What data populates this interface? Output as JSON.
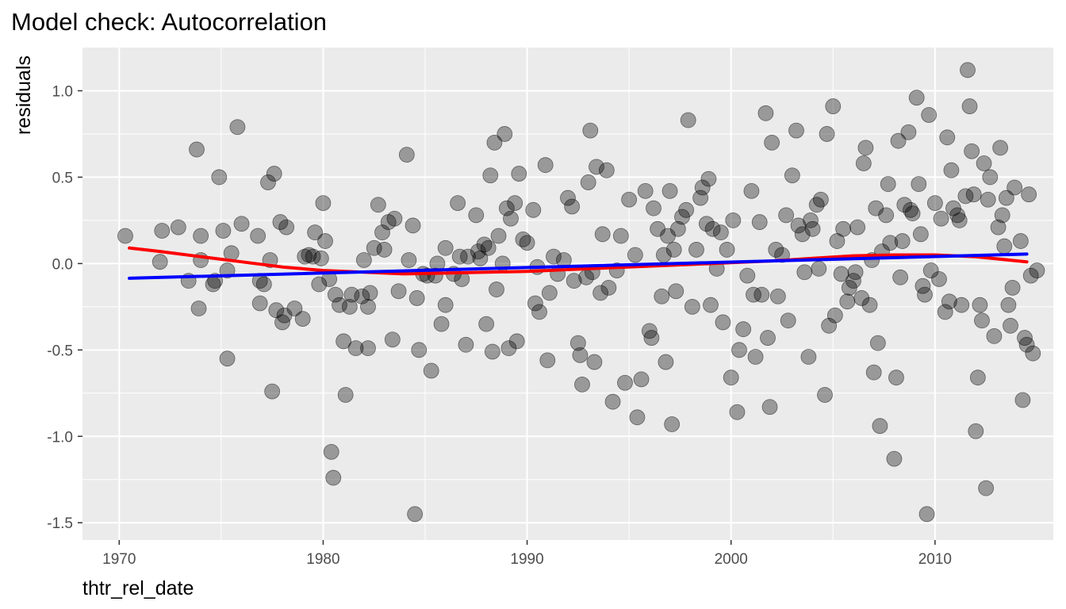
{
  "chart_data": {
    "type": "scatter",
    "title": "Model check: Autocorrelation",
    "xlabel": "thtr_rel_date",
    "ylabel": "residuals",
    "xlim": [
      1968.2,
      2015.8
    ],
    "ylim": [
      -1.6,
      1.25
    ],
    "x_ticks": [
      1970,
      1980,
      1990,
      2000,
      2010
    ],
    "x_tick_labels": [
      "1970",
      "1980",
      "1990",
      "2000",
      "2010"
    ],
    "y_ticks": [
      1.0,
      0.5,
      0.0,
      -0.5,
      -1.0,
      -1.5
    ],
    "y_tick_labels": [
      "1.0",
      "0.5",
      "0.0",
      "-0.5",
      "-1.0",
      "-1.5"
    ],
    "grid": true,
    "background": "#ebebeb",
    "point_color": "#000000",
    "point_opacity": 0.35,
    "points": [
      [
        1970.3,
        0.16
      ],
      [
        1972.0,
        0.01
      ],
      [
        1972.1,
        0.19
      ],
      [
        1972.9,
        0.21
      ],
      [
        1973.4,
        -0.1
      ],
      [
        1973.8,
        0.66
      ],
      [
        1973.9,
        -0.26
      ],
      [
        1974.0,
        0.16
      ],
      [
        1974.0,
        0.02
      ],
      [
        1974.6,
        -0.12
      ],
      [
        1974.7,
        -0.1
      ],
      [
        1974.9,
        0.5
      ],
      [
        1975.1,
        0.19
      ],
      [
        1975.3,
        -0.04
      ],
      [
        1975.3,
        -0.55
      ],
      [
        1975.5,
        0.06
      ],
      [
        1975.8,
        0.79
      ],
      [
        1976.0,
        0.23
      ],
      [
        1976.8,
        0.16
      ],
      [
        1976.9,
        -0.1
      ],
      [
        1976.9,
        -0.23
      ],
      [
        1977.1,
        -0.12
      ],
      [
        1977.3,
        0.47
      ],
      [
        1977.4,
        0.02
      ],
      [
        1977.5,
        -0.74
      ],
      [
        1977.6,
        0.52
      ],
      [
        1977.7,
        -0.27
      ],
      [
        1977.9,
        0.24
      ],
      [
        1978.0,
        -0.34
      ],
      [
        1978.1,
        -0.3
      ],
      [
        1978.2,
        0.21
      ],
      [
        1978.6,
        -0.26
      ],
      [
        1979.0,
        -0.32
      ],
      [
        1979.1,
        0.04
      ],
      [
        1979.3,
        0.05
      ],
      [
        1979.5,
        0.04
      ],
      [
        1979.6,
        0.18
      ],
      [
        1979.8,
        -0.12
      ],
      [
        1979.9,
        0.03
      ],
      [
        1980.0,
        0.35
      ],
      [
        1980.1,
        0.13
      ],
      [
        1980.3,
        -0.09
      ],
      [
        1980.4,
        -1.09
      ],
      [
        1980.5,
        -1.24
      ],
      [
        1980.6,
        -0.18
      ],
      [
        1980.8,
        -0.24
      ],
      [
        1981.0,
        -0.45
      ],
      [
        1981.1,
        -0.76
      ],
      [
        1981.3,
        -0.25
      ],
      [
        1981.4,
        -0.18
      ],
      [
        1981.6,
        -0.49
      ],
      [
        1981.9,
        -0.19
      ],
      [
        1982.0,
        0.02
      ],
      [
        1982.2,
        -0.25
      ],
      [
        1982.2,
        -0.49
      ],
      [
        1982.3,
        -0.17
      ],
      [
        1982.5,
        0.09
      ],
      [
        1982.7,
        0.34
      ],
      [
        1982.9,
        0.18
      ],
      [
        1983.0,
        0.08
      ],
      [
        1983.2,
        0.24
      ],
      [
        1983.4,
        -0.44
      ],
      [
        1983.5,
        0.26
      ],
      [
        1983.7,
        -0.16
      ],
      [
        1984.1,
        0.63
      ],
      [
        1984.2,
        0.02
      ],
      [
        1984.4,
        0.22
      ],
      [
        1984.5,
        -1.45
      ],
      [
        1984.6,
        -0.2
      ],
      [
        1984.7,
        -0.5
      ],
      [
        1984.9,
        -0.06
      ],
      [
        1985.1,
        -0.07
      ],
      [
        1985.3,
        -0.62
      ],
      [
        1985.5,
        -0.07
      ],
      [
        1985.6,
        0.0
      ],
      [
        1985.8,
        -0.35
      ],
      [
        1986.0,
        -0.24
      ],
      [
        1986.0,
        0.09
      ],
      [
        1986.4,
        -0.06
      ],
      [
        1986.6,
        0.35
      ],
      [
        1986.7,
        0.04
      ],
      [
        1986.8,
        -0.09
      ],
      [
        1987.0,
        -0.47
      ],
      [
        1987.1,
        0.04
      ],
      [
        1987.5,
        0.28
      ],
      [
        1987.6,
        0.07
      ],
      [
        1987.7,
        0.03
      ],
      [
        1987.9,
        0.11
      ],
      [
        1988.0,
        -0.35
      ],
      [
        1988.1,
        0.09
      ],
      [
        1988.2,
        0.51
      ],
      [
        1988.3,
        -0.51
      ],
      [
        1988.4,
        0.7
      ],
      [
        1988.5,
        -0.15
      ],
      [
        1988.6,
        0.16
      ],
      [
        1988.8,
        0.0
      ],
      [
        1988.9,
        0.75
      ],
      [
        1989.0,
        0.32
      ],
      [
        1989.1,
        -0.49
      ],
      [
        1989.2,
        0.26
      ],
      [
        1989.4,
        0.35
      ],
      [
        1989.5,
        -0.45
      ],
      [
        1989.6,
        0.52
      ],
      [
        1989.8,
        0.14
      ],
      [
        1990.0,
        0.12
      ],
      [
        1990.3,
        0.31
      ],
      [
        1990.4,
        -0.23
      ],
      [
        1990.5,
        -0.02
      ],
      [
        1990.6,
        -0.28
      ],
      [
        1990.9,
        0.57
      ],
      [
        1991.0,
        -0.56
      ],
      [
        1991.1,
        -0.17
      ],
      [
        1991.3,
        0.04
      ],
      [
        1991.5,
        -0.06
      ],
      [
        1991.8,
        0.02
      ],
      [
        1992.0,
        0.38
      ],
      [
        1992.2,
        0.33
      ],
      [
        1992.3,
        -0.1
      ],
      [
        1992.5,
        -0.46
      ],
      [
        1992.6,
        -0.53
      ],
      [
        1992.7,
        -0.7
      ],
      [
        1992.9,
        -0.08
      ],
      [
        1993.0,
        0.47
      ],
      [
        1993.1,
        0.77
      ],
      [
        1993.2,
        -0.05
      ],
      [
        1993.3,
        -0.57
      ],
      [
        1993.4,
        0.56
      ],
      [
        1993.6,
        -0.17
      ],
      [
        1993.7,
        0.17
      ],
      [
        1993.9,
        0.54
      ],
      [
        1994.0,
        -0.14
      ],
      [
        1994.2,
        -0.8
      ],
      [
        1994.4,
        -0.04
      ],
      [
        1994.6,
        0.16
      ],
      [
        1994.8,
        -0.69
      ],
      [
        1995.0,
        0.37
      ],
      [
        1995.3,
        0.05
      ],
      [
        1995.4,
        -0.89
      ],
      [
        1995.6,
        -0.67
      ],
      [
        1995.8,
        0.42
      ],
      [
        1996.0,
        -0.39
      ],
      [
        1996.1,
        -0.43
      ],
      [
        1996.2,
        0.32
      ],
      [
        1996.4,
        0.2
      ],
      [
        1996.6,
        -0.19
      ],
      [
        1996.7,
        0.05
      ],
      [
        1996.8,
        -0.57
      ],
      [
        1996.9,
        0.16
      ],
      [
        1997.0,
        0.42
      ],
      [
        1997.1,
        -0.93
      ],
      [
        1997.2,
        0.08
      ],
      [
        1997.3,
        -0.16
      ],
      [
        1997.4,
        0.2
      ],
      [
        1997.6,
        0.27
      ],
      [
        1997.8,
        0.31
      ],
      [
        1997.9,
        0.83
      ],
      [
        1998.1,
        -0.25
      ],
      [
        1998.3,
        0.08
      ],
      [
        1998.5,
        0.38
      ],
      [
        1998.6,
        0.44
      ],
      [
        1998.8,
        0.23
      ],
      [
        1998.9,
        0.49
      ],
      [
        1999.0,
        -0.24
      ],
      [
        1999.1,
        0.2
      ],
      [
        1999.3,
        -0.03
      ],
      [
        1999.5,
        0.18
      ],
      [
        1999.6,
        -0.34
      ],
      [
        1999.8,
        0.08
      ],
      [
        2000.0,
        -0.66
      ],
      [
        2000.1,
        0.25
      ],
      [
        2000.3,
        -0.86
      ],
      [
        2000.4,
        -0.5
      ],
      [
        2000.6,
        -0.38
      ],
      [
        2000.8,
        -0.07
      ],
      [
        2001.0,
        0.42
      ],
      [
        2001.1,
        -0.18
      ],
      [
        2001.2,
        -0.54
      ],
      [
        2001.4,
        0.24
      ],
      [
        2001.5,
        -0.18
      ],
      [
        2001.7,
        0.87
      ],
      [
        2001.8,
        -0.43
      ],
      [
        2001.9,
        -0.83
      ],
      [
        2002.0,
        0.7
      ],
      [
        2002.2,
        0.08
      ],
      [
        2002.3,
        -0.19
      ],
      [
        2002.5,
        0.05
      ],
      [
        2002.7,
        0.28
      ],
      [
        2002.8,
        -0.33
      ],
      [
        2003.0,
        0.51
      ],
      [
        2003.2,
        0.77
      ],
      [
        2003.3,
        0.22
      ],
      [
        2003.5,
        0.17
      ],
      [
        2003.6,
        -0.05
      ],
      [
        2003.8,
        -0.54
      ],
      [
        2003.9,
        0.25
      ],
      [
        2004.0,
        0.2
      ],
      [
        2004.2,
        0.34
      ],
      [
        2004.3,
        -0.03
      ],
      [
        2004.4,
        0.37
      ],
      [
        2004.6,
        -0.76
      ],
      [
        2004.7,
        0.75
      ],
      [
        2004.8,
        -0.36
      ],
      [
        2005.0,
        0.91
      ],
      [
        2005.1,
        -0.3
      ],
      [
        2005.2,
        0.13
      ],
      [
        2005.4,
        -0.06
      ],
      [
        2005.5,
        0.2
      ],
      [
        2005.7,
        -0.22
      ],
      [
        2005.8,
        -0.14
      ],
      [
        2006.0,
        -0.1
      ],
      [
        2006.1,
        -0.05
      ],
      [
        2006.2,
        0.21
      ],
      [
        2006.4,
        -0.2
      ],
      [
        2006.5,
        0.58
      ],
      [
        2006.6,
        0.67
      ],
      [
        2006.8,
        -0.24
      ],
      [
        2006.9,
        0.02
      ],
      [
        2007.0,
        -0.63
      ],
      [
        2007.1,
        0.32
      ],
      [
        2007.2,
        -0.46
      ],
      [
        2007.3,
        -0.94
      ],
      [
        2007.4,
        0.07
      ],
      [
        2007.6,
        0.28
      ],
      [
        2007.7,
        0.46
      ],
      [
        2007.8,
        0.12
      ],
      [
        2008.0,
        -1.13
      ],
      [
        2008.1,
        -0.66
      ],
      [
        2008.2,
        0.71
      ],
      [
        2008.3,
        -0.08
      ],
      [
        2008.4,
        0.13
      ],
      [
        2008.5,
        0.34
      ],
      [
        2008.7,
        0.76
      ],
      [
        2008.8,
        0.31
      ],
      [
        2008.9,
        0.29
      ],
      [
        2009.1,
        0.96
      ],
      [
        2009.2,
        0.46
      ],
      [
        2009.3,
        0.17
      ],
      [
        2009.4,
        -0.13
      ],
      [
        2009.5,
        -0.18
      ],
      [
        2009.6,
        -1.45
      ],
      [
        2009.7,
        0.86
      ],
      [
        2009.8,
        -0.04
      ],
      [
        2010.0,
        0.35
      ],
      [
        2010.2,
        -0.09
      ],
      [
        2010.3,
        0.26
      ],
      [
        2010.5,
        -0.28
      ],
      [
        2010.6,
        0.73
      ],
      [
        2010.7,
        -0.22
      ],
      [
        2010.8,
        0.54
      ],
      [
        2010.9,
        0.32
      ],
      [
        2011.1,
        0.28
      ],
      [
        2011.2,
        0.25
      ],
      [
        2011.3,
        -0.24
      ],
      [
        2011.5,
        0.39
      ],
      [
        2011.6,
        1.12
      ],
      [
        2011.7,
        0.91
      ],
      [
        2011.8,
        0.65
      ],
      [
        2011.9,
        0.4
      ],
      [
        2012.0,
        -0.97
      ],
      [
        2012.1,
        -0.66
      ],
      [
        2012.2,
        -0.24
      ],
      [
        2012.3,
        -0.33
      ],
      [
        2012.4,
        0.58
      ],
      [
        2012.5,
        -1.3
      ],
      [
        2012.6,
        0.37
      ],
      [
        2012.7,
        0.5
      ],
      [
        2012.9,
        -0.42
      ],
      [
        2013.1,
        0.21
      ],
      [
        2013.2,
        0.67
      ],
      [
        2013.3,
        0.28
      ],
      [
        2013.4,
        0.1
      ],
      [
        2013.5,
        0.38
      ],
      [
        2013.6,
        -0.24
      ],
      [
        2013.7,
        -0.36
      ],
      [
        2013.8,
        -0.14
      ],
      [
        2013.9,
        0.44
      ],
      [
        2014.2,
        0.13
      ],
      [
        2014.3,
        -0.79
      ],
      [
        2014.4,
        -0.43
      ],
      [
        2014.5,
        -0.47
      ],
      [
        2014.6,
        0.4
      ],
      [
        2014.7,
        -0.07
      ],
      [
        2014.8,
        -0.52
      ],
      [
        2015.0,
        -0.04
      ]
    ],
    "series": [
      {
        "color": "#ff0000",
        "x": [
          1970.5,
          1972,
          1974,
          1976,
          1978,
          1980,
          1982,
          1984,
          1986,
          1988,
          1990,
          1992,
          1994,
          1996,
          1998,
          2000,
          2002,
          2004,
          2006,
          2008,
          2010,
          2012,
          2014.5
        ],
        "y": [
          0.09,
          0.07,
          0.04,
          0.01,
          -0.02,
          -0.04,
          -0.05,
          -0.06,
          -0.055,
          -0.05,
          -0.045,
          -0.035,
          -0.025,
          -0.015,
          -0.005,
          0.005,
          0.015,
          0.03,
          0.045,
          0.05,
          0.05,
          0.04,
          0.01
        ]
      },
      {
        "color": "#0000ff",
        "x": [
          1970.5,
          2014.5
        ],
        "y": [
          -0.085,
          0.055
        ]
      }
    ]
  }
}
